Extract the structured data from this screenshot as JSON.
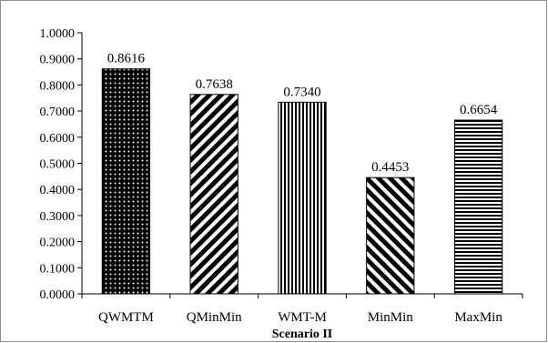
{
  "chart_data": {
    "type": "bar",
    "title": "",
    "xlabel": "Scenario II",
    "ylabel": "",
    "categories": [
      "QWMTM",
      "QMinMin",
      "WMT-M",
      "MinMin",
      "MaxMin"
    ],
    "values": [
      0.8616,
      0.7638,
      0.734,
      0.4453,
      0.6654
    ],
    "data_labels": [
      "0.8616",
      "0.7638",
      "0.7340",
      "0.4453",
      "0.6654"
    ],
    "ylim": [
      0,
      1
    ],
    "yticks": [
      "0.0000",
      "0.1000",
      "0.2000",
      "0.3000",
      "0.4000",
      "0.5000",
      "0.6000",
      "0.7000",
      "0.8000",
      "0.9000",
      "1.0000"
    ],
    "grid": false,
    "legend": "none",
    "bar_patterns": [
      "dots",
      "diagonal-down",
      "vertical",
      "diagonal-up",
      "horizontal"
    ],
    "colors": {
      "bar_fill": "#000000",
      "bar_background": "#ffffff",
      "axis": "#000000",
      "frame": "#8c8c8c"
    }
  }
}
